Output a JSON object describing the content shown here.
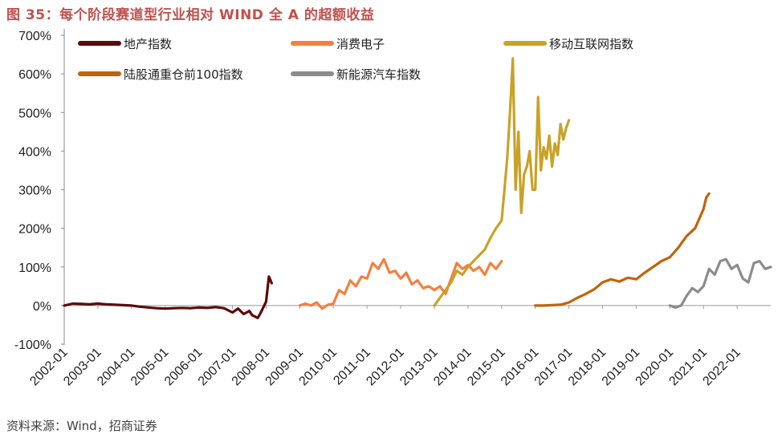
{
  "figure": {
    "title": "图 35：每个阶段赛道型行业相对 WIND 全 A 的超额收益",
    "source": "资料来源：Wind，招商证券",
    "title_color": "#c0504d"
  },
  "chart_data": {
    "type": "line",
    "title": "",
    "xlabel": "",
    "ylabel": "",
    "y_unit": "%",
    "ylim": [
      -100,
      700
    ],
    "yticks": [
      -100,
      0,
      100,
      200,
      300,
      400,
      500,
      600,
      700
    ],
    "yticklabels": [
      "-100%",
      "0%",
      "100%",
      "200%",
      "300%",
      "400%",
      "500%",
      "600%",
      "700%"
    ],
    "xlim": [
      "2002-01",
      "2023-01"
    ],
    "xticklabels": [
      "2002-01",
      "2003-01",
      "2004-01",
      "2005-01",
      "2006-01",
      "2007-01",
      "2008-01",
      "2009-01",
      "2010-01",
      "2011-01",
      "2012-01",
      "2013-01",
      "2014-01",
      "2015-01",
      "2016-01",
      "2017-01",
      "2018-01",
      "2019-01",
      "2020-01",
      "2021-01",
      "2022-01"
    ],
    "grid": false,
    "legend_position": "top",
    "series": [
      {
        "name": "地产指数",
        "color": "#5c0a0a",
        "x": [
          "2002-01",
          "2002-04",
          "2002-07",
          "2002-10",
          "2003-01",
          "2003-04",
          "2003-07",
          "2003-10",
          "2004-01",
          "2004-04",
          "2004-07",
          "2004-10",
          "2005-01",
          "2005-04",
          "2005-07",
          "2005-10",
          "2006-01",
          "2006-04",
          "2006-07",
          "2006-10",
          "2007-01",
          "2007-03",
          "2007-05",
          "2007-07",
          "2007-08",
          "2007-10",
          "2007-11",
          "2008-01",
          "2008-02",
          "2008-03"
        ],
        "y": [
          0,
          5,
          4,
          3,
          5,
          3,
          2,
          1,
          0,
          -3,
          -5,
          -7,
          -8,
          -7,
          -6,
          -7,
          -5,
          -6,
          -4,
          -7,
          -18,
          -8,
          -22,
          -14,
          -25,
          -32,
          -20,
          10,
          75,
          58
        ]
      },
      {
        "name": "消费电子",
        "color": "#f28040",
        "x": [
          "2009-01",
          "2009-03",
          "2009-05",
          "2009-07",
          "2009-09",
          "2009-11",
          "2010-01",
          "2010-03",
          "2010-05",
          "2010-07",
          "2010-09",
          "2010-11",
          "2011-01",
          "2011-03",
          "2011-05",
          "2011-07",
          "2011-09",
          "2011-11",
          "2012-01",
          "2012-03",
          "2012-05",
          "2012-07",
          "2012-09",
          "2012-11",
          "2013-01",
          "2013-03",
          "2013-05",
          "2013-07",
          "2013-09",
          "2013-11",
          "2014-01",
          "2014-03",
          "2014-05",
          "2014-07",
          "2014-09",
          "2014-11",
          "2015-01"
        ],
        "y": [
          0,
          5,
          0,
          8,
          -8,
          2,
          5,
          40,
          30,
          65,
          50,
          75,
          70,
          110,
          95,
          120,
          85,
          90,
          70,
          85,
          55,
          65,
          45,
          50,
          40,
          50,
          30,
          70,
          110,
          95,
          105,
          90,
          100,
          80,
          110,
          95,
          115
        ]
      },
      {
        "name": "移动互联网指数",
        "color": "#c9a227",
        "x": [
          "2013-01",
          "2013-03",
          "2013-05",
          "2013-07",
          "2013-09",
          "2013-11",
          "2014-01",
          "2014-03",
          "2014-05",
          "2014-07",
          "2014-09",
          "2014-11",
          "2015-01",
          "2015-02",
          "2015-03",
          "2015-04",
          "2015-05",
          "2015-06",
          "2015-07",
          "2015-08",
          "2015-09",
          "2015-10",
          "2015-11",
          "2015-12",
          "2016-01",
          "2016-02",
          "2016-03",
          "2016-04",
          "2016-05",
          "2016-06",
          "2016-07",
          "2016-08",
          "2016-09",
          "2016-10",
          "2016-11",
          "2016-12",
          "2017-01"
        ],
        "y": [
          0,
          20,
          40,
          60,
          90,
          80,
          100,
          115,
          130,
          145,
          175,
          200,
          220,
          300,
          380,
          500,
          640,
          300,
          450,
          240,
          340,
          360,
          400,
          300,
          300,
          540,
          350,
          410,
          380,
          440,
          360,
          420,
          390,
          470,
          430,
          460,
          480
        ]
      },
      {
        "name": "陆股通重仓前100指数",
        "color": "#c0640a",
        "x": [
          "2016-01",
          "2016-04",
          "2016-07",
          "2016-10",
          "2017-01",
          "2017-04",
          "2017-07",
          "2017-10",
          "2018-01",
          "2018-04",
          "2018-07",
          "2018-10",
          "2019-01",
          "2019-04",
          "2019-07",
          "2019-10",
          "2020-01",
          "2020-04",
          "2020-07",
          "2020-10",
          "2021-01",
          "2021-02",
          "2021-03"
        ],
        "y": [
          0,
          0,
          1,
          2,
          8,
          20,
          30,
          42,
          60,
          68,
          62,
          72,
          68,
          85,
          100,
          115,
          125,
          150,
          180,
          200,
          250,
          280,
          290
        ]
      },
      {
        "name": "新能源汽车指数",
        "color": "#8c8c8c",
        "x": [
          "2020-01",
          "2020-03",
          "2020-05",
          "2020-07",
          "2020-09",
          "2020-11",
          "2021-01",
          "2021-03",
          "2021-05",
          "2021-07",
          "2021-09",
          "2021-11",
          "2022-01",
          "2022-03",
          "2022-05",
          "2022-07",
          "2022-09",
          "2022-11",
          "2023-01"
        ],
        "y": [
          0,
          -5,
          0,
          25,
          45,
          35,
          50,
          95,
          80,
          115,
          120,
          95,
          105,
          70,
          60,
          110,
          115,
          95,
          100
        ]
      }
    ]
  }
}
